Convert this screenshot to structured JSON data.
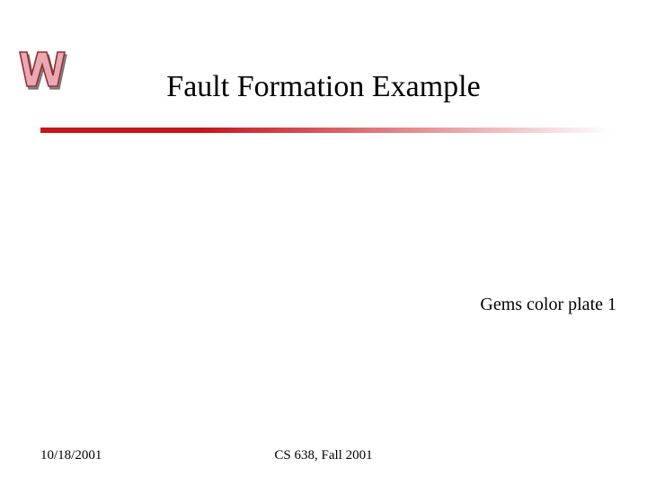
{
  "title": {
    "text": "Fault Formation Example",
    "fontsize": 34,
    "color": "#000000"
  },
  "body": {
    "text": "Gems color plate 1",
    "fontsize": 20,
    "color": "#000000"
  },
  "footer": {
    "date": "10/18/2001",
    "course": "CS 638, Fall 2001",
    "fontsize": 15,
    "color": "#000000"
  },
  "divider": {
    "height": 6,
    "gradient_from": "#c7131a",
    "gradient_to": "#ffffff"
  },
  "logo": {
    "letter": "W",
    "fill": "#e8a9b3",
    "stroke": "#9a2a2f",
    "shadow": "#6b6b6b"
  },
  "background_color": "#ffffff"
}
